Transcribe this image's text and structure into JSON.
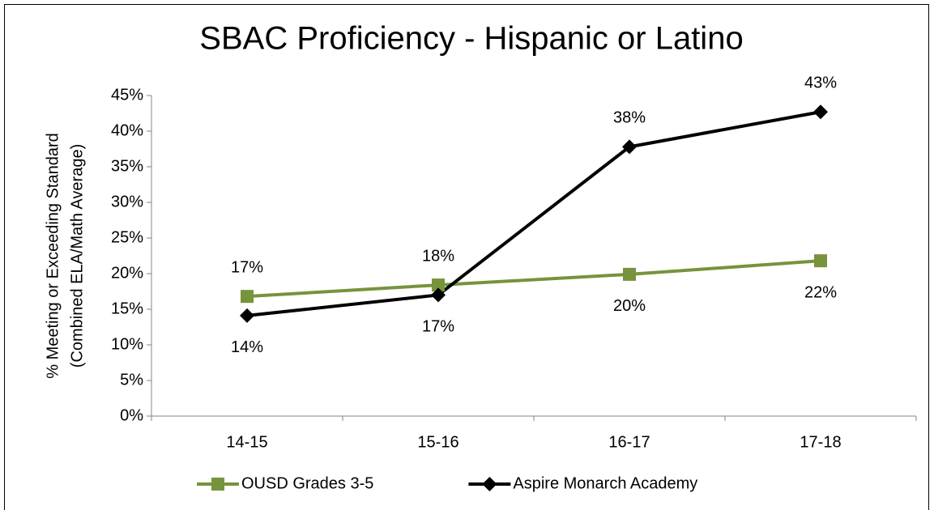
{
  "chart_data": {
    "type": "line",
    "title": "SBAC Proficiency - Hispanic or Latino",
    "ylabel_lines": [
      "% Meeting or Exceeding Standard",
      "(Combined ELA/Math Average)"
    ],
    "categories": [
      "14-15",
      "15-16",
      "16-17",
      "17-18"
    ],
    "series": [
      {
        "name": "OUSD Grades 3-5",
        "color": "#77933c",
        "marker": "square",
        "values": [
          16.8,
          18.4,
          19.9,
          21.8
        ],
        "value_labels": [
          "17%",
          "18%",
          "20%",
          "22%"
        ]
      },
      {
        "name": "Aspire Monarch Academy",
        "color": "#000000",
        "marker": "diamond",
        "values": [
          14.1,
          17.0,
          37.8,
          42.7
        ],
        "value_labels": [
          "14%",
          "17%",
          "38%",
          "43%"
        ]
      }
    ],
    "ylim": [
      0,
      45
    ],
    "yticks": [
      {
        "value": 0,
        "label": "0%"
      },
      {
        "value": 5,
        "label": "5%"
      },
      {
        "value": 10,
        "label": "10%"
      },
      {
        "value": 15,
        "label": "15%"
      },
      {
        "value": 20,
        "label": "20%"
      },
      {
        "value": 25,
        "label": "25%"
      },
      {
        "value": 30,
        "label": "30%"
      },
      {
        "value": 35,
        "label": "35%"
      },
      {
        "value": 40,
        "label": "40%"
      },
      {
        "value": 45,
        "label": "45%"
      }
    ],
    "grid": false,
    "legend": "bottom"
  }
}
